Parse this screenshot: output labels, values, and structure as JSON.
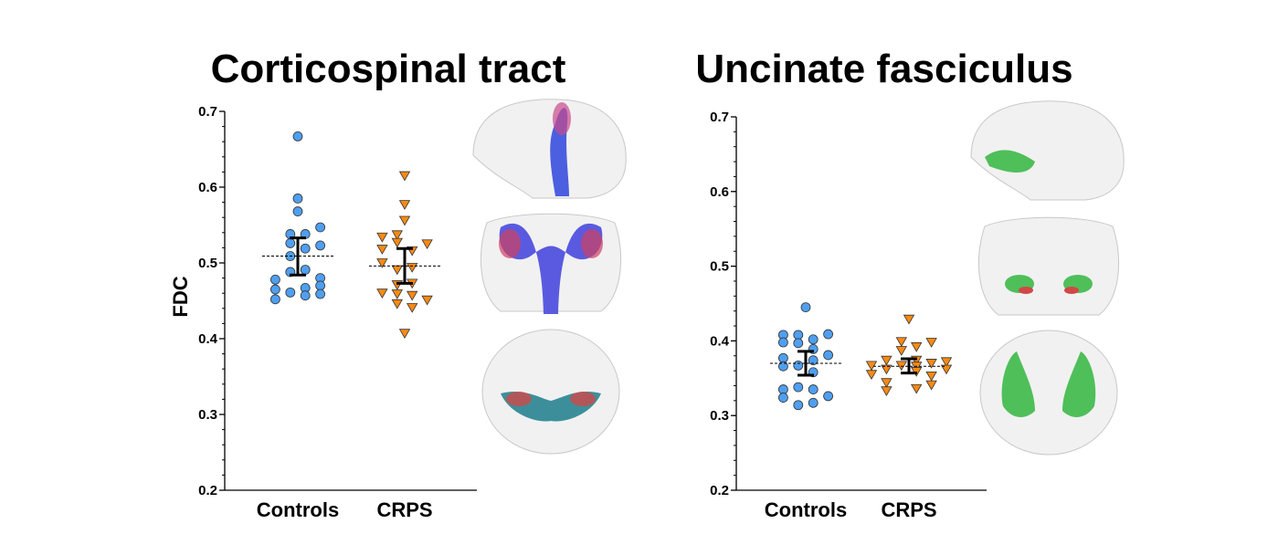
{
  "colors": {
    "controls": "#4f9ff0",
    "crps": "#f98a14",
    "stroke": "#333333"
  },
  "chart_data": [
    {
      "type": "scatter",
      "title": "Corticospinal tract",
      "ylabel": "FDC",
      "xlabel": "",
      "ylim": [
        0.2,
        0.7
      ],
      "yticks": [
        "0.2",
        "0.3",
        "0.4",
        "0.5",
        "0.6",
        "0.7"
      ],
      "categories": [
        "Controls",
        "CRPS"
      ],
      "series": [
        {
          "name": "Controls",
          "marker": "circle",
          "mean": 0.509,
          "ci": [
            0.484,
            0.533
          ],
          "points": [
            [
              0.667,
              0
            ],
            [
              0.585,
              0
            ],
            [
              0.568,
              0
            ],
            [
              0.538,
              -1
            ],
            [
              0.538,
              1
            ],
            [
              0.547,
              3
            ],
            [
              0.526,
              -1
            ],
            [
              0.523,
              3
            ],
            [
              0.519,
              1
            ],
            [
              0.509,
              -1
            ],
            [
              0.488,
              -1
            ],
            [
              0.491,
              1
            ],
            [
              0.478,
              -3
            ],
            [
              0.48,
              3
            ],
            [
              0.465,
              -3
            ],
            [
              0.467,
              1
            ],
            [
              0.47,
              3
            ],
            [
              0.452,
              -3
            ],
            [
              0.461,
              -1
            ],
            [
              0.457,
              1
            ],
            [
              0.459,
              3
            ]
          ]
        },
        {
          "name": "CRPS",
          "marker": "triangle-down",
          "mean": 0.496,
          "ci": [
            0.473,
            0.519
          ],
          "points": [
            [
              0.615,
              0
            ],
            [
              0.577,
              0
            ],
            [
              0.556,
              0
            ],
            [
              0.534,
              -3
            ],
            [
              0.537,
              -1
            ],
            [
              0.518,
              -3
            ],
            [
              0.527,
              -1
            ],
            [
              0.525,
              3
            ],
            [
              0.516,
              1
            ],
            [
              0.5,
              -3
            ],
            [
              0.491,
              -1
            ],
            [
              0.494,
              1
            ],
            [
              0.471,
              -1
            ],
            [
              0.473,
              1
            ],
            [
              0.46,
              -3
            ],
            [
              0.459,
              -1
            ],
            [
              0.457,
              1
            ],
            [
              0.451,
              3
            ],
            [
              0.446,
              -1
            ],
            [
              0.441,
              1
            ],
            [
              0.407,
              0
            ]
          ]
        }
      ]
    },
    {
      "type": "scatter",
      "title": "Uncinate fasciculus",
      "ylabel": "",
      "xlabel": "",
      "ylim": [
        0.2,
        0.7
      ],
      "yticks": [
        "0.2",
        "0.3",
        "0.4",
        "0.5",
        "0.6",
        "0.7"
      ],
      "categories": [
        "Controls",
        "CRPS"
      ],
      "series": [
        {
          "name": "Controls",
          "marker": "circle",
          "mean": 0.37,
          "ci": [
            0.354,
            0.386
          ],
          "points": [
            [
              0.445,
              0
            ],
            [
              0.408,
              -3
            ],
            [
              0.408,
              -1
            ],
            [
              0.409,
              3
            ],
            [
              0.398,
              -3
            ],
            [
              0.397,
              -1
            ],
            [
              0.402,
              1
            ],
            [
              0.389,
              1
            ],
            [
              0.377,
              -3
            ],
            [
              0.381,
              3
            ],
            [
              0.374,
              1
            ],
            [
              0.366,
              -3
            ],
            [
              0.367,
              -1
            ],
            [
              0.358,
              1
            ],
            [
              0.335,
              -3
            ],
            [
              0.338,
              -1
            ],
            [
              0.335,
              1
            ],
            [
              0.324,
              -3
            ],
            [
              0.326,
              3
            ],
            [
              0.314,
              -1
            ],
            [
              0.317,
              1
            ]
          ]
        },
        {
          "name": "CRPS",
          "marker": "triangle-down",
          "mean": 0.366,
          "ci": [
            0.357,
            0.376
          ],
          "points": [
            [
              0.429,
              0
            ],
            [
              0.399,
              -1
            ],
            [
              0.398,
              3
            ],
            [
              0.387,
              -1
            ],
            [
              0.392,
              1
            ],
            [
              0.374,
              -3
            ],
            [
              0.374,
              1
            ],
            [
              0.37,
              3
            ],
            [
              0.372,
              5
            ],
            [
              0.367,
              -5
            ],
            [
              0.367,
              -1
            ],
            [
              0.366,
              1
            ],
            [
              0.355,
              -5
            ],
            [
              0.362,
              -3
            ],
            [
              0.359,
              1
            ],
            [
              0.353,
              3
            ],
            [
              0.362,
              5
            ],
            [
              0.344,
              -3
            ],
            [
              0.341,
              3
            ],
            [
              0.333,
              -3
            ],
            [
              0.336,
              1
            ]
          ]
        }
      ]
    }
  ]
}
